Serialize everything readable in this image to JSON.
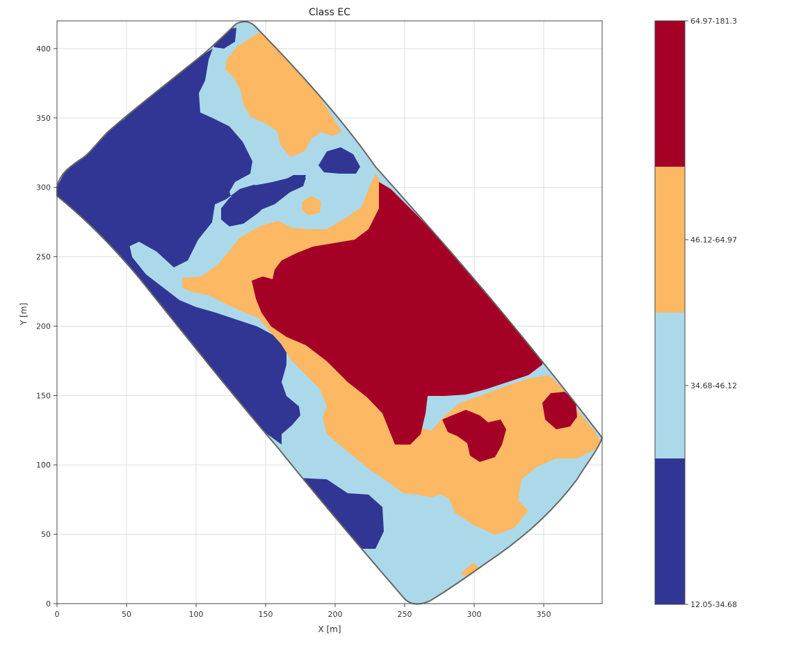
{
  "chart_data": {
    "type": "heatmap",
    "title": "Class EC",
    "xlabel": "X [m]",
    "ylabel": "Y [m]",
    "xlim": [
      0,
      392
    ],
    "ylim": [
      0,
      420
    ],
    "xticks": [
      0,
      50,
      100,
      150,
      200,
      250,
      300,
      350
    ],
    "yticks": [
      0,
      50,
      100,
      150,
      200,
      250,
      300,
      350,
      400
    ],
    "grid": true,
    "colorbar": {
      "placement": "right",
      "classes": [
        {
          "label": "12.05-34.68",
          "color": "#313695"
        },
        {
          "label": "34.68-46.12",
          "color": "#abd9e9"
        },
        {
          "label": "46.12-64.97",
          "color": "#fdb863"
        },
        {
          "label": "64.97-181.3",
          "color": "#a50026"
        }
      ]
    }
  },
  "colors": {
    "outline": "#666666",
    "grid": "#dddddd",
    "axes": "#444444"
  }
}
